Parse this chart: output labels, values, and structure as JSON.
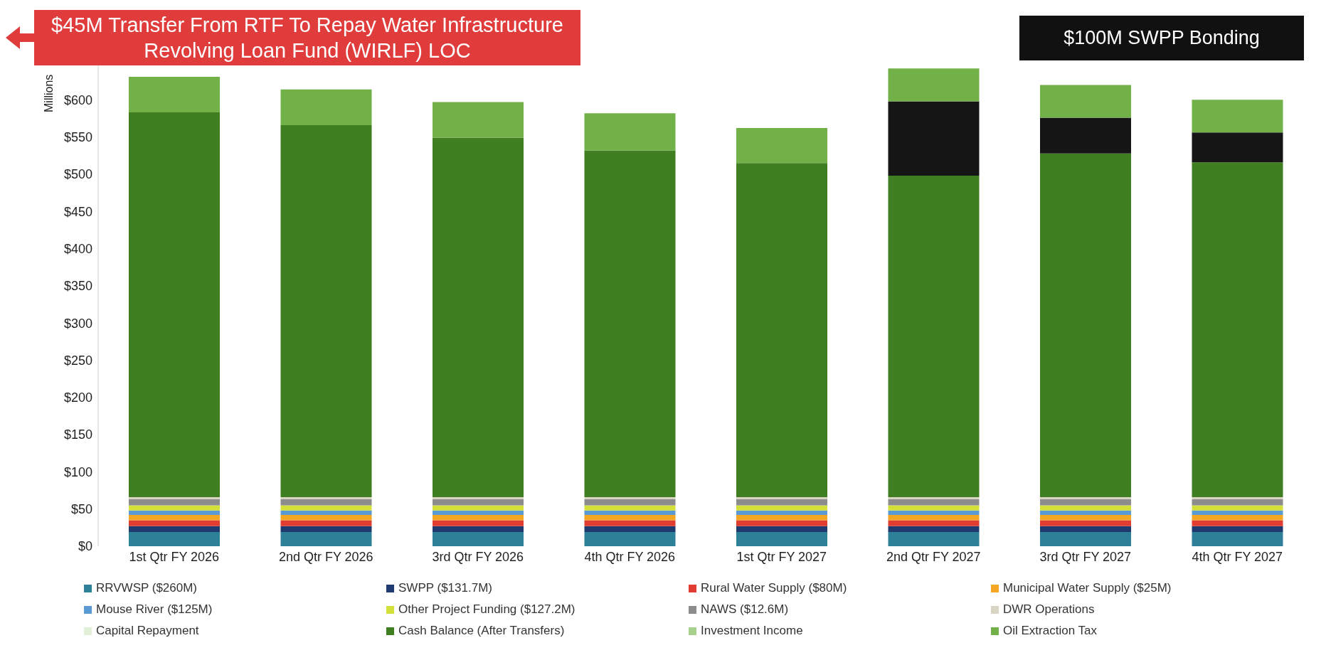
{
  "chart_data": {
    "type": "bar",
    "stacked": true,
    "ylabel": "Millions",
    "legend": "bottom",
    "grid": false,
    "annotations": [
      "$45M Transfer From RTF To Repay Water Infrastructure Revolving Loan Fund (WIRLF) LOC",
      "$100M SWPP Bonding"
    ],
    "categories": [
      "1st Qtr FY 2026",
      "2nd Qtr FY 2026",
      "3rd Qtr FY 2026",
      "4th Qtr FY 2026",
      "1st Qtr FY 2027",
      "2nd Qtr FY 2027",
      "3rd Qtr FY 2027",
      "4th Qtr FY 2027"
    ],
    "ylim": [
      0,
      650
    ],
    "yticks": [
      {
        "value": 0,
        "label": "$0"
      },
      {
        "value": 50,
        "label": "$50"
      },
      {
        "value": 100,
        "label": "$100"
      },
      {
        "value": 150,
        "label": "$150"
      },
      {
        "value": 200,
        "label": "$200"
      },
      {
        "value": 250,
        "label": "$250"
      },
      {
        "value": 300,
        "label": "$300"
      },
      {
        "value": 350,
        "label": "$350"
      },
      {
        "value": 400,
        "label": "$400"
      },
      {
        "value": 450,
        "label": "$450"
      },
      {
        "value": 500,
        "label": "$500"
      },
      {
        "value": 550,
        "label": "$550"
      },
      {
        "value": 600,
        "label": "$600"
      }
    ],
    "series": [
      {
        "name": "RRVWSP ($260M)",
        "color": "#2e7f98",
        "values": [
          19,
          19,
          19,
          19,
          19,
          19,
          19,
          19
        ]
      },
      {
        "name": "SWPP ($131.7M)",
        "color": "#1f3a6e",
        "values": [
          8,
          8,
          8,
          8,
          8,
          8,
          8,
          8
        ]
      },
      {
        "name": "Rural Water Supply ($80M)",
        "color": "#e03c31",
        "values": [
          8,
          8,
          8,
          8,
          8,
          8,
          8,
          8
        ]
      },
      {
        "name": "Municipal Water Supply ($25M)",
        "color": "#f5a623",
        "values": [
          7,
          7,
          7,
          7,
          7,
          7,
          7,
          7
        ]
      },
      {
        "name": "Mouse River ($125M)",
        "color": "#5b9bd5",
        "values": [
          6,
          6,
          6,
          6,
          6,
          6,
          6,
          6
        ]
      },
      {
        "name": "Other Project Funding ($127.2M)",
        "color": "#d4e03a",
        "values": [
          7,
          7,
          7,
          7,
          7,
          7,
          7,
          7
        ]
      },
      {
        "name": "NAWS ($12.6M)",
        "color": "#8c8c8c",
        "values": [
          8,
          8,
          8,
          8,
          8,
          8,
          8,
          8
        ]
      },
      {
        "name": "DWR Operations",
        "color": "#d9d5c5",
        "values": [
          3,
          3,
          3,
          3,
          3,
          3,
          3,
          3
        ]
      },
      {
        "name": "Capital Repayment",
        "color": "#e2f0d9",
        "values": [
          0,
          0,
          0,
          0,
          0,
          0,
          0,
          0
        ]
      },
      {
        "name": "Cash Balance (After Transfers)",
        "color": "#3f7f22",
        "values": [
          517,
          500,
          483,
          466,
          449,
          432,
          462,
          450
        ]
      },
      {
        "color": "#151515",
        "values": [
          0,
          0,
          0,
          0,
          0,
          100,
          48,
          40
        ]
      },
      {
        "name": "Investment Income",
        "color": "#a9d18e",
        "values": [
          0,
          0,
          0,
          0,
          0,
          0,
          0,
          0
        ]
      },
      {
        "name": "Oil Extraction Tax",
        "color": "#72b148",
        "values": [
          48,
          48,
          48,
          50,
          47,
          44,
          44,
          44
        ]
      }
    ]
  }
}
